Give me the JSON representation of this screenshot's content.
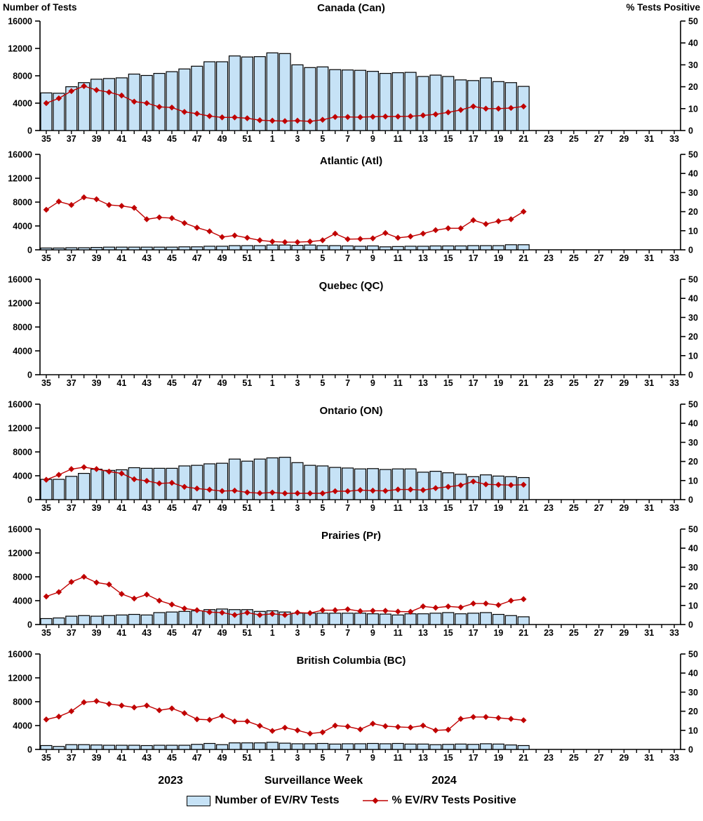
{
  "header": {
    "left_axis_title": "Number of Tests",
    "right_axis_title": "% Tests Positive"
  },
  "colors": {
    "bar_fill": "#C6E2F6",
    "bar_stroke": "#000000",
    "line": "#C00000",
    "text": "#000000"
  },
  "y_axis_left": {
    "ticks": [
      0,
      4000,
      8000,
      12000,
      16000
    ],
    "max": 16000
  },
  "y_axis_right": {
    "ticks": [
      0,
      10,
      20,
      30,
      40,
      50
    ],
    "max": 50
  },
  "x_axis": {
    "title": "Surveillance Week",
    "year_left": "2023",
    "year_right": "2024",
    "axis_weeks": [
      35,
      36,
      37,
      38,
      39,
      40,
      41,
      42,
      43,
      44,
      45,
      46,
      47,
      48,
      49,
      50,
      51,
      52,
      1,
      2,
      3,
      4,
      5,
      6,
      7,
      8,
      9,
      10,
      11,
      12,
      13,
      14,
      15,
      16,
      17,
      18,
      19,
      20,
      21,
      22,
      23,
      24,
      25,
      26,
      27,
      28,
      29,
      30,
      31,
      32,
      33
    ],
    "labeled_weeks": [
      35,
      37,
      39,
      41,
      43,
      45,
      47,
      49,
      51,
      1,
      3,
      5,
      7,
      9,
      11,
      13,
      15,
      17,
      19,
      21,
      23,
      25,
      27,
      29,
      31,
      33
    ]
  },
  "legend": {
    "items": [
      {
        "label": "Number of EV/RV Tests",
        "swatch": "bar"
      },
      {
        "label": "% EV/RV Tests Positive",
        "swatch": "line"
      }
    ]
  },
  "chart_data": [
    {
      "type": "bar+line",
      "title": "Canada (Can)",
      "categories": [
        35,
        36,
        37,
        38,
        39,
        40,
        41,
        42,
        43,
        44,
        45,
        46,
        47,
        48,
        49,
        50,
        51,
        52,
        1,
        2,
        3,
        4,
        5,
        6,
        7,
        8,
        9,
        10,
        11,
        12,
        13,
        14,
        15,
        16,
        17,
        18,
        19,
        20,
        21
      ],
      "left_ylim": [
        0,
        16000
      ],
      "right_ylim": [
        0,
        50
      ],
      "series": [
        {
          "name": "Number of EV/RV Tests",
          "axis": "left",
          "values": [
            5500,
            5450,
            6400,
            7000,
            7500,
            7600,
            7700,
            8250,
            8050,
            8350,
            8600,
            9000,
            9400,
            10050,
            10050,
            10900,
            10750,
            10800,
            11350,
            11250,
            9600,
            9200,
            9300,
            8900,
            8850,
            8800,
            8650,
            8350,
            8450,
            8500,
            7900,
            8100,
            7900,
            7400,
            7300,
            7700,
            7150,
            7000,
            6450
          ]
        },
        {
          "name": "% EV/RV Tests Positive",
          "axis": "right",
          "values": [
            12.5,
            14.7,
            18,
            20.3,
            18.5,
            17.5,
            16,
            13.2,
            12.5,
            10.8,
            10.5,
            8.5,
            7.7,
            6.6,
            6,
            6,
            5.6,
            4.7,
            4.5,
            4.3,
            4.5,
            4.2,
            4.9,
            6.2,
            6.2,
            6.1,
            6.3,
            6.4,
            6.4,
            6.5,
            6.9,
            7.4,
            8.3,
            9.4,
            11,
            10,
            10,
            10.3,
            11
          ]
        }
      ]
    },
    {
      "type": "bar+line",
      "title": "Atlantic (Atl)",
      "categories": [
        35,
        36,
        37,
        38,
        39,
        40,
        41,
        42,
        43,
        44,
        45,
        46,
        47,
        48,
        49,
        50,
        51,
        52,
        1,
        2,
        3,
        4,
        5,
        6,
        7,
        8,
        9,
        10,
        11,
        12,
        13,
        14,
        15,
        16,
        17,
        18,
        19,
        20,
        21
      ],
      "left_ylim": [
        0,
        16000
      ],
      "right_ylim": [
        0,
        50
      ],
      "series": [
        {
          "name": "Number of EV/RV Tests",
          "axis": "left",
          "values": [
            300,
            300,
            350,
            350,
            400,
            450,
            450,
            450,
            450,
            450,
            450,
            500,
            500,
            600,
            600,
            700,
            700,
            700,
            800,
            800,
            750,
            800,
            700,
            700,
            650,
            600,
            650,
            500,
            550,
            600,
            600,
            650,
            650,
            650,
            700,
            700,
            700,
            850,
            850
          ]
        },
        {
          "name": "% EV/RV Tests Positive",
          "axis": "right",
          "values": [
            21,
            25.3,
            23.5,
            27.5,
            26.5,
            23.5,
            23,
            22,
            16,
            17,
            16.6,
            14,
            11.6,
            9.7,
            6.7,
            7.5,
            6.3,
            5,
            4.3,
            4,
            4,
            4.3,
            5,
            8.5,
            5.6,
            5.7,
            6,
            8.8,
            6.3,
            7,
            8.5,
            10.3,
            11.3,
            11.3,
            15.5,
            13.5,
            15,
            16,
            20
          ]
        }
      ]
    },
    {
      "type": "bar+line",
      "title": "Quebec (QC)",
      "categories": [],
      "left_ylim": [
        0,
        16000
      ],
      "right_ylim": [
        0,
        50
      ],
      "series": [
        {
          "name": "Number of EV/RV Tests",
          "axis": "left",
          "values": []
        },
        {
          "name": "% EV/RV Tests Positive",
          "axis": "right",
          "values": []
        }
      ]
    },
    {
      "type": "bar+line",
      "title": "Ontario (ON)",
      "categories": [
        35,
        36,
        37,
        38,
        39,
        40,
        41,
        42,
        43,
        44,
        45,
        46,
        47,
        48,
        49,
        50,
        51,
        52,
        1,
        2,
        3,
        4,
        5,
        6,
        7,
        8,
        9,
        10,
        11,
        12,
        13,
        14,
        15,
        16,
        17,
        18,
        19,
        20,
        21
      ],
      "left_ylim": [
        0,
        16000
      ],
      "right_ylim": [
        0,
        50
      ],
      "series": [
        {
          "name": "Number of EV/RV Tests",
          "axis": "left",
          "values": [
            3400,
            3400,
            3900,
            4400,
            5100,
            4900,
            5000,
            5350,
            5250,
            5250,
            5250,
            5650,
            5750,
            6000,
            6100,
            6800,
            6450,
            6800,
            7000,
            7100,
            6200,
            5750,
            5650,
            5400,
            5300,
            5150,
            5200,
            5050,
            5150,
            5150,
            4600,
            4750,
            4500,
            4250,
            3850,
            4150,
            3950,
            3850,
            3700
          ]
        },
        {
          "name": "% EV/RV Tests Positive",
          "axis": "right",
          "values": [
            10.4,
            13,
            16,
            17,
            16,
            14.7,
            13.7,
            10.7,
            9.8,
            8.5,
            8.8,
            6.7,
            5.8,
            5.2,
            4.5,
            4.7,
            3.8,
            3.4,
            3.7,
            3.3,
            3.3,
            3.3,
            3.3,
            4.4,
            4.4,
            5,
            4.7,
            4.6,
            5.3,
            5.3,
            5,
            6,
            6.7,
            7.5,
            9.5,
            8,
            7.8,
            7.6,
            7.8
          ]
        }
      ]
    },
    {
      "type": "bar+line",
      "title": "Prairies (Pr)",
      "categories": [
        35,
        36,
        37,
        38,
        39,
        40,
        41,
        42,
        43,
        44,
        45,
        46,
        47,
        48,
        49,
        50,
        51,
        52,
        1,
        2,
        3,
        4,
        5,
        6,
        7,
        8,
        9,
        10,
        11,
        12,
        13,
        14,
        15,
        16,
        17,
        18,
        19,
        20,
        21
      ],
      "left_ylim": [
        0,
        16000
      ],
      "right_ylim": [
        0,
        50
      ],
      "series": [
        {
          "name": "Number of EV/RV Tests",
          "axis": "left",
          "values": [
            1000,
            1100,
            1400,
            1500,
            1400,
            1500,
            1600,
            1700,
            1600,
            2000,
            2100,
            2200,
            2300,
            2500,
            2600,
            2500,
            2500,
            2200,
            2300,
            2100,
            1900,
            1900,
            1900,
            1900,
            1900,
            1900,
            1800,
            1750,
            1600,
            1800,
            1800,
            1900,
            2000,
            1800,
            1900,
            2000,
            1700,
            1500,
            1300
          ]
        },
        {
          "name": "% EV/RV Tests Positive",
          "axis": "right",
          "values": [
            14.7,
            17,
            22.3,
            25,
            22,
            21,
            16,
            13.6,
            15.7,
            12.5,
            10.5,
            8.4,
            7.5,
            6.5,
            6.2,
            5,
            6.2,
            5,
            5.6,
            5,
            6.3,
            6,
            7.5,
            7.5,
            8,
            7,
            7.2,
            7.2,
            6.8,
            6.7,
            9.5,
            8.8,
            9.5,
            9,
            11,
            11,
            10.2,
            12.5,
            13.3
          ]
        }
      ]
    },
    {
      "type": "bar+line",
      "title": "British Columbia (BC)",
      "categories": [
        35,
        36,
        37,
        38,
        39,
        40,
        41,
        42,
        43,
        44,
        45,
        46,
        47,
        48,
        49,
        50,
        51,
        52,
        1,
        2,
        3,
        4,
        5,
        6,
        7,
        8,
        9,
        10,
        11,
        12,
        13,
        14,
        15,
        16,
        17,
        18,
        19,
        20,
        21
      ],
      "left_ylim": [
        0,
        16000
      ],
      "right_ylim": [
        0,
        50
      ],
      "series": [
        {
          "name": "Number of EV/RV Tests",
          "axis": "left",
          "values": [
            650,
            500,
            800,
            800,
            750,
            700,
            700,
            700,
            650,
            700,
            700,
            700,
            850,
            1000,
            800,
            1100,
            1100,
            1100,
            1200,
            1050,
            950,
            950,
            1000,
            900,
            950,
            950,
            1000,
            950,
            1000,
            900,
            900,
            800,
            850,
            900,
            850,
            950,
            900,
            750,
            650
          ]
        },
        {
          "name": "% EV/RV Tests Positive",
          "axis": "right",
          "values": [
            15.7,
            17.2,
            20,
            24.7,
            25.3,
            23.8,
            23,
            22,
            23,
            20.5,
            21.5,
            19,
            15.8,
            15.5,
            17.6,
            14.7,
            14.7,
            12.4,
            9.7,
            11.4,
            10,
            8.3,
            9,
            12.5,
            12,
            10.5,
            13.5,
            12.2,
            11.8,
            11.5,
            12.5,
            10,
            10.3,
            16,
            17,
            17,
            16.5,
            16,
            15.3
          ]
        }
      ]
    }
  ]
}
